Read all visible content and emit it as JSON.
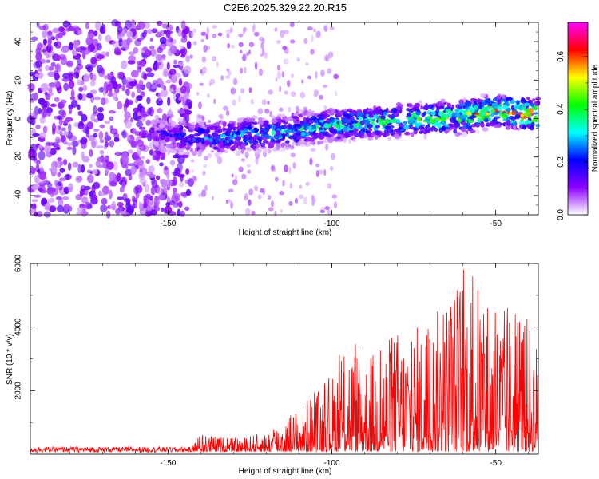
{
  "title": "C2E6.2025.329.22.20.R15",
  "chart_data": [
    {
      "type": "heatmap",
      "xlabel": "Height of straight line (km)",
      "ylabel": "Frequency (Hz)",
      "xlim": [
        -192,
        -37
      ],
      "ylim": [
        -50,
        50
      ],
      "xticks": [
        -150,
        -100,
        -50
      ],
      "yticks": [
        -40,
        -20,
        0,
        20,
        40
      ],
      "colorbar": {
        "label": "Normalized spectral amplitude",
        "range": [
          0,
          0.73
        ],
        "ticks": [
          "0.0",
          "0.2",
          "0.4",
          "0.6"
        ],
        "tick_values": [
          0.0,
          0.2,
          0.4,
          0.6
        ],
        "colormap": [
          "#ffffff",
          "#8b00ff",
          "#0000ff",
          "#00ffff",
          "#00ff00",
          "#ffff00",
          "#ff0000",
          "#ff00ff"
        ]
      },
      "noise_region": {
        "x": [
          -192,
          -143
        ],
        "amplitude": 0.12
      },
      "signal_ridge": {
        "x": [
          -155,
          -140,
          -120,
          -100,
          -80,
          -60,
          -50,
          -37
        ],
        "frequency_hz": [
          -8,
          -10,
          -8,
          -3,
          -1,
          1,
          4,
          2
        ],
        "peak_amplitude": [
          0.15,
          0.3,
          0.35,
          0.4,
          0.45,
          0.55,
          0.6,
          0.7
        ]
      }
    },
    {
      "type": "line",
      "color": "#ff0000",
      "xlabel": "Height of straight line (km)",
      "ylabel": "SNR (10 * v/v)",
      "xlim": [
        -192,
        -37
      ],
      "ylim": [
        0,
        6000
      ],
      "xticks": [
        -150,
        -100,
        -50
      ],
      "yticks": [
        2000,
        4000,
        6000
      ],
      "envelope": {
        "x": [
          -192,
          -160,
          -143,
          -140,
          -130,
          -120,
          -110,
          -100,
          -95,
          -90,
          -80,
          -70,
          -60,
          -50,
          -45,
          -40,
          -37
        ],
        "y_max": [
          250,
          250,
          250,
          650,
          500,
          700,
          1500,
          2500,
          3900,
          3000,
          4000,
          4200,
          6000,
          4700,
          4600,
          4300,
          3500
        ]
      }
    }
  ]
}
